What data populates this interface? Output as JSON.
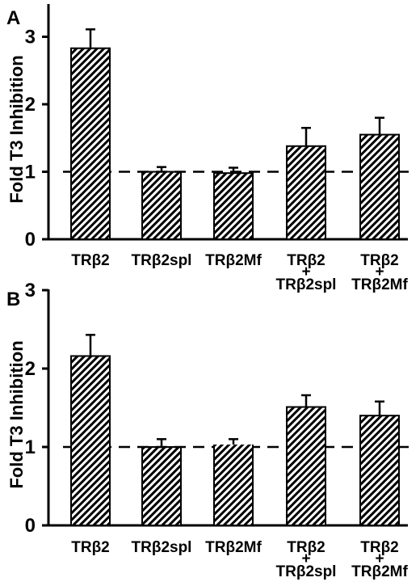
{
  "chart_data": [
    {
      "type": "bar",
      "panel": "A",
      "ylabel": "Fold T3 Inhibition",
      "ylim": [
        0,
        3.5
      ],
      "yticks": [
        0,
        1,
        2,
        3
      ],
      "reference_line": 1,
      "categories": [
        [
          "TRβ2"
        ],
        [
          "TRβ2spl"
        ],
        [
          "TRβ2Mf"
        ],
        [
          "TRβ2",
          "+",
          "TRβ2spl"
        ],
        [
          "TRβ2",
          "+",
          "TRβ2Mf"
        ]
      ],
      "values": [
        2.83,
        1.0,
        0.98,
        1.38,
        1.55
      ],
      "errors": [
        0.28,
        0.07,
        0.08,
        0.27,
        0.25
      ],
      "pattern": "diagonal-hatch"
    },
    {
      "type": "bar",
      "panel": "B",
      "ylabel": "Fold T3 Inhibition",
      "ylim": [
        0,
        3
      ],
      "yticks": [
        0,
        1,
        2,
        3
      ],
      "reference_line": 1,
      "categories": [
        [
          "TRβ2"
        ],
        [
          "TRβ2spl"
        ],
        [
          "TRβ2Mf"
        ],
        [
          "TRβ2",
          "+",
          "TRβ2spl"
        ],
        [
          "TRβ2",
          "+",
          "TRβ2Mf"
        ]
      ],
      "values": [
        2.16,
        1.0,
        1.02,
        1.51,
        1.4
      ],
      "errors": [
        0.27,
        0.1,
        0.08,
        0.15,
        0.18
      ],
      "pattern": "diagonal-hatch"
    }
  ]
}
